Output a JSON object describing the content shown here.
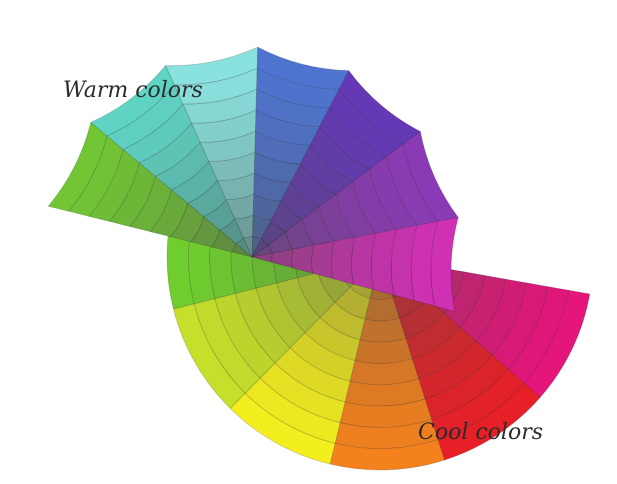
{
  "labels": {
    "warm": "Warm colors",
    "cool": "Cool colors"
  },
  "wheels": {
    "warm": {
      "segments": [
        {
          "name": "green",
          "color": "#6fcf2e"
        },
        {
          "name": "yellow-green",
          "color": "#c7e02a"
        },
        {
          "name": "yellow",
          "color": "#f4ef1e"
        },
        {
          "name": "orange",
          "color": "#f5811d"
        },
        {
          "name": "red",
          "color": "#e81f26"
        },
        {
          "name": "magenta-red",
          "color": "#e5157a"
        }
      ]
    },
    "cool": {
      "segments": [
        {
          "name": "green",
          "color": "#72c734"
        },
        {
          "name": "teal",
          "color": "#5fd5c5"
        },
        {
          "name": "light-cyan",
          "color": "#8be3e0"
        },
        {
          "name": "blue",
          "color": "#4f74d1"
        },
        {
          "name": "violet",
          "color": "#6539b6"
        },
        {
          "name": "purple",
          "color": "#8c3ab6"
        },
        {
          "name": "magenta",
          "color": "#d030b5"
        }
      ]
    }
  }
}
